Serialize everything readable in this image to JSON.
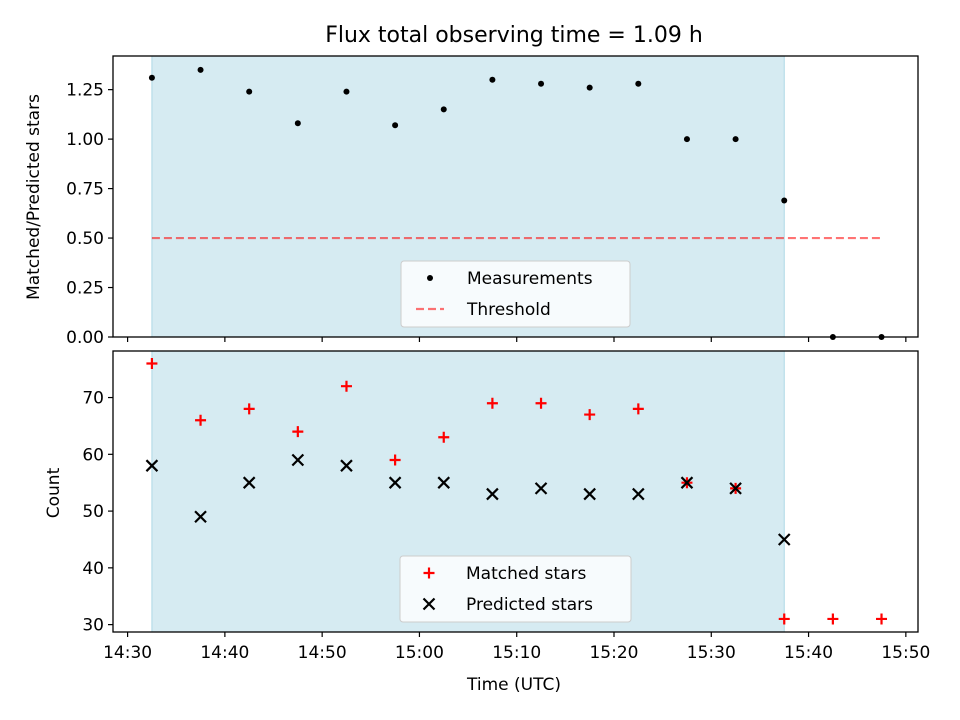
{
  "title": "Flux total observing time = 1.09 h",
  "colors": {
    "shade": "#add8e6",
    "threshold": "#ff0000",
    "measurement": "#000000",
    "matched": "#ff0000",
    "predicted": "#000000"
  },
  "chart_data": [
    {
      "type": "scatter",
      "panel": "top",
      "xlabel": "",
      "ylabel": "Matched/Predicted stars",
      "ylim": [
        0.0,
        1.42
      ],
      "xlim": [
        "14:28:30",
        "15:51:15"
      ],
      "yticks": [
        "0.00",
        "0.25",
        "0.50",
        "0.75",
        "1.00",
        "1.25"
      ],
      "ytick_values": [
        0.0,
        0.25,
        0.5,
        0.75,
        1.0,
        1.25
      ],
      "shaded_span": [
        "14:32:30",
        "15:37:30"
      ],
      "legend": {
        "placement": "lower center",
        "entries": [
          "Measurements",
          "Threshold"
        ]
      },
      "series": [
        {
          "name": "Measurements",
          "marker": "dot",
          "x": [
            "14:32:30",
            "14:37:30",
            "14:42:30",
            "14:47:30",
            "14:52:30",
            "14:57:30",
            "15:02:30",
            "15:07:30",
            "15:12:30",
            "15:17:30",
            "15:22:30",
            "15:27:30",
            "15:32:30",
            "15:37:30",
            "15:42:30",
            "15:47:30"
          ],
          "y": [
            1.31,
            1.35,
            1.24,
            1.08,
            1.24,
            1.07,
            1.15,
            1.3,
            1.28,
            1.26,
            1.28,
            1.0,
            1.0,
            0.69,
            0.0,
            0.0
          ]
        },
        {
          "name": "Threshold",
          "marker": "dashed-line",
          "x": [
            "14:32:30",
            "15:47:30"
          ],
          "y": [
            0.5,
            0.5
          ]
        }
      ]
    },
    {
      "type": "scatter",
      "panel": "bottom",
      "xlabel": "Time (UTC)",
      "ylabel": "Count",
      "ylim": [
        28.7,
        78.2
      ],
      "xlim": [
        "14:28:30",
        "15:51:15"
      ],
      "yticks": [
        "30",
        "40",
        "50",
        "60",
        "70"
      ],
      "ytick_values": [
        30,
        40,
        50,
        60,
        70
      ],
      "xticks": [
        "14:30",
        "14:40",
        "14:50",
        "15:00",
        "15:10",
        "15:20",
        "15:30",
        "15:40",
        "15:50"
      ],
      "shaded_span": [
        "14:32:30",
        "15:37:30"
      ],
      "legend": {
        "placement": "lower center",
        "entries": [
          "Matched stars",
          "Predicted stars"
        ]
      },
      "series": [
        {
          "name": "Matched stars",
          "marker": "plus",
          "x": [
            "14:32:30",
            "14:37:30",
            "14:42:30",
            "14:47:30",
            "14:52:30",
            "14:57:30",
            "15:02:30",
            "15:07:30",
            "15:12:30",
            "15:17:30",
            "15:22:30",
            "15:27:30",
            "15:32:30",
            "15:37:30",
            "15:42:30",
            "15:47:30"
          ],
          "y": [
            76,
            66,
            68,
            64,
            72,
            59,
            63,
            69,
            69,
            67,
            68,
            55,
            54,
            31,
            31,
            31
          ]
        },
        {
          "name": "Predicted stars",
          "marker": "x",
          "x": [
            "14:32:30",
            "14:37:30",
            "14:42:30",
            "14:47:30",
            "14:52:30",
            "14:57:30",
            "15:02:30",
            "15:07:30",
            "15:12:30",
            "15:17:30",
            "15:22:30",
            "15:27:30",
            "15:32:30",
            "15:37:30"
          ],
          "y": [
            58,
            49,
            55,
            59,
            58,
            55,
            55,
            53,
            54,
            53,
            53,
            55,
            54,
            45
          ]
        }
      ]
    }
  ]
}
